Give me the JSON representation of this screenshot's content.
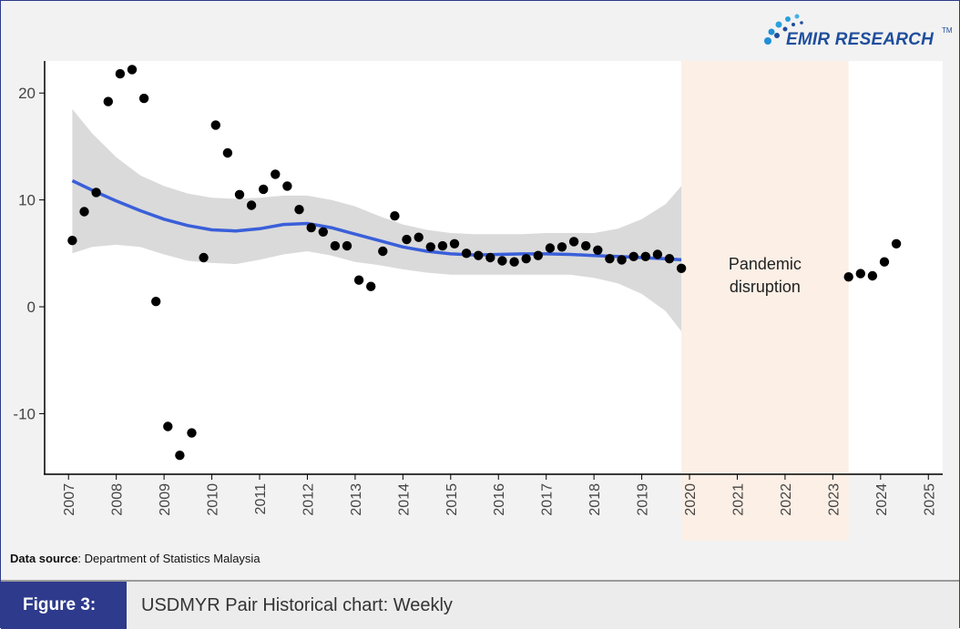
{
  "logo": {
    "text": "EMIR RESEARCH",
    "tm": "TM"
  },
  "source": {
    "label": "Data source",
    "text": ": Department of Statistics Malaysia"
  },
  "footer": {
    "figure_label": "Figure 3:",
    "title": "USDMYR Pair Historical chart: Weekly"
  },
  "colors": {
    "frame": "#2e3a8c",
    "trend_line": "#3a5fd9",
    "confidence_band": "#d3d3d3",
    "pandemic_shade": "#fbefe6",
    "points": "#000000"
  },
  "chart_data": {
    "type": "scatter",
    "title": "",
    "xlabel": "",
    "ylabel": "",
    "xlim": [
      2006.5,
      2025.3
    ],
    "ylim": [
      -15.5,
      23
    ],
    "grid": false,
    "x_ticks": [
      2007,
      2008,
      2009,
      2010,
      2011,
      2012,
      2013,
      2014,
      2015,
      2016,
      2017,
      2018,
      2019,
      2020,
      2021,
      2022,
      2023,
      2024,
      2025
    ],
    "y_ticks": [
      -10,
      0,
      10,
      20
    ],
    "points": [
      [
        2007.08,
        6.2
      ],
      [
        2007.33,
        8.9
      ],
      [
        2007.58,
        10.7
      ],
      [
        2007.83,
        19.2
      ],
      [
        2008.08,
        21.8
      ],
      [
        2008.33,
        22.2
      ],
      [
        2008.58,
        19.5
      ],
      [
        2008.83,
        0.5
      ],
      [
        2009.08,
        -11.2
      ],
      [
        2009.33,
        -13.9
      ],
      [
        2009.58,
        -11.8
      ],
      [
        2009.83,
        4.6
      ],
      [
        2010.08,
        17.0
      ],
      [
        2010.33,
        14.4
      ],
      [
        2010.58,
        10.5
      ],
      [
        2010.83,
        9.5
      ],
      [
        2011.08,
        11.0
      ],
      [
        2011.33,
        12.4
      ],
      [
        2011.58,
        11.3
      ],
      [
        2011.83,
        9.1
      ],
      [
        2012.08,
        7.4
      ],
      [
        2012.33,
        7.0
      ],
      [
        2012.58,
        5.7
      ],
      [
        2012.83,
        5.7
      ],
      [
        2013.08,
        2.5
      ],
      [
        2013.33,
        1.9
      ],
      [
        2013.58,
        5.2
      ],
      [
        2013.83,
        8.5
      ],
      [
        2014.08,
        6.3
      ],
      [
        2014.33,
        6.5
      ],
      [
        2014.58,
        5.6
      ],
      [
        2014.83,
        5.7
      ],
      [
        2015.08,
        5.9
      ],
      [
        2015.33,
        5.0
      ],
      [
        2015.58,
        4.8
      ],
      [
        2015.83,
        4.6
      ],
      [
        2016.08,
        4.3
      ],
      [
        2016.33,
        4.2
      ],
      [
        2016.58,
        4.5
      ],
      [
        2016.83,
        4.8
      ],
      [
        2017.08,
        5.5
      ],
      [
        2017.33,
        5.6
      ],
      [
        2017.58,
        6.1
      ],
      [
        2017.83,
        5.7
      ],
      [
        2018.08,
        5.3
      ],
      [
        2018.33,
        4.5
      ],
      [
        2018.58,
        4.4
      ],
      [
        2018.83,
        4.7
      ],
      [
        2019.08,
        4.7
      ],
      [
        2019.33,
        4.9
      ],
      [
        2019.58,
        4.5
      ],
      [
        2019.83,
        3.6
      ],
      [
        2023.33,
        2.8
      ],
      [
        2023.58,
        3.1
      ],
      [
        2023.83,
        2.9
      ],
      [
        2024.08,
        4.2
      ],
      [
        2024.33,
        5.9
      ]
    ],
    "trend": {
      "x": [
        2007.08,
        2007.5,
        2008.0,
        2008.5,
        2009.0,
        2009.5,
        2010.0,
        2010.5,
        2011.0,
        2011.5,
        2012.0,
        2012.5,
        2013.0,
        2013.5,
        2014.0,
        2014.5,
        2015.0,
        2015.5,
        2016.0,
        2016.5,
        2017.0,
        2017.5,
        2018.0,
        2018.5,
        2019.0,
        2019.5,
        2019.83
      ],
      "y": [
        11.8,
        10.9,
        9.9,
        9.0,
        8.2,
        7.6,
        7.2,
        7.1,
        7.3,
        7.7,
        7.8,
        7.4,
        6.8,
        6.2,
        5.6,
        5.2,
        4.95,
        4.85,
        4.9,
        4.95,
        4.95,
        4.9,
        4.8,
        4.7,
        4.6,
        4.5,
        4.4
      ],
      "lower": [
        5.0,
        5.6,
        5.8,
        5.6,
        4.9,
        4.3,
        4.1,
        4.0,
        4.4,
        4.9,
        5.2,
        4.8,
        4.2,
        3.9,
        3.5,
        3.2,
        3.0,
        3.0,
        3.0,
        3.0,
        3.0,
        3.0,
        2.7,
        2.2,
        1.2,
        -0.4,
        -2.3
      ],
      "upper": [
        18.5,
        16.2,
        14.0,
        12.3,
        11.3,
        10.6,
        10.2,
        10.1,
        10.2,
        10.4,
        10.4,
        10.0,
        9.4,
        8.5,
        7.7,
        7.2,
        6.9,
        6.8,
        6.8,
        6.8,
        6.9,
        6.9,
        6.9,
        7.3,
        8.2,
        9.6,
        11.3
      ]
    },
    "shaded_region": {
      "x_start": 2019.83,
      "x_end": 2023.33
    },
    "annotation": {
      "line1": "Pandemic",
      "line2": "disruption"
    }
  }
}
